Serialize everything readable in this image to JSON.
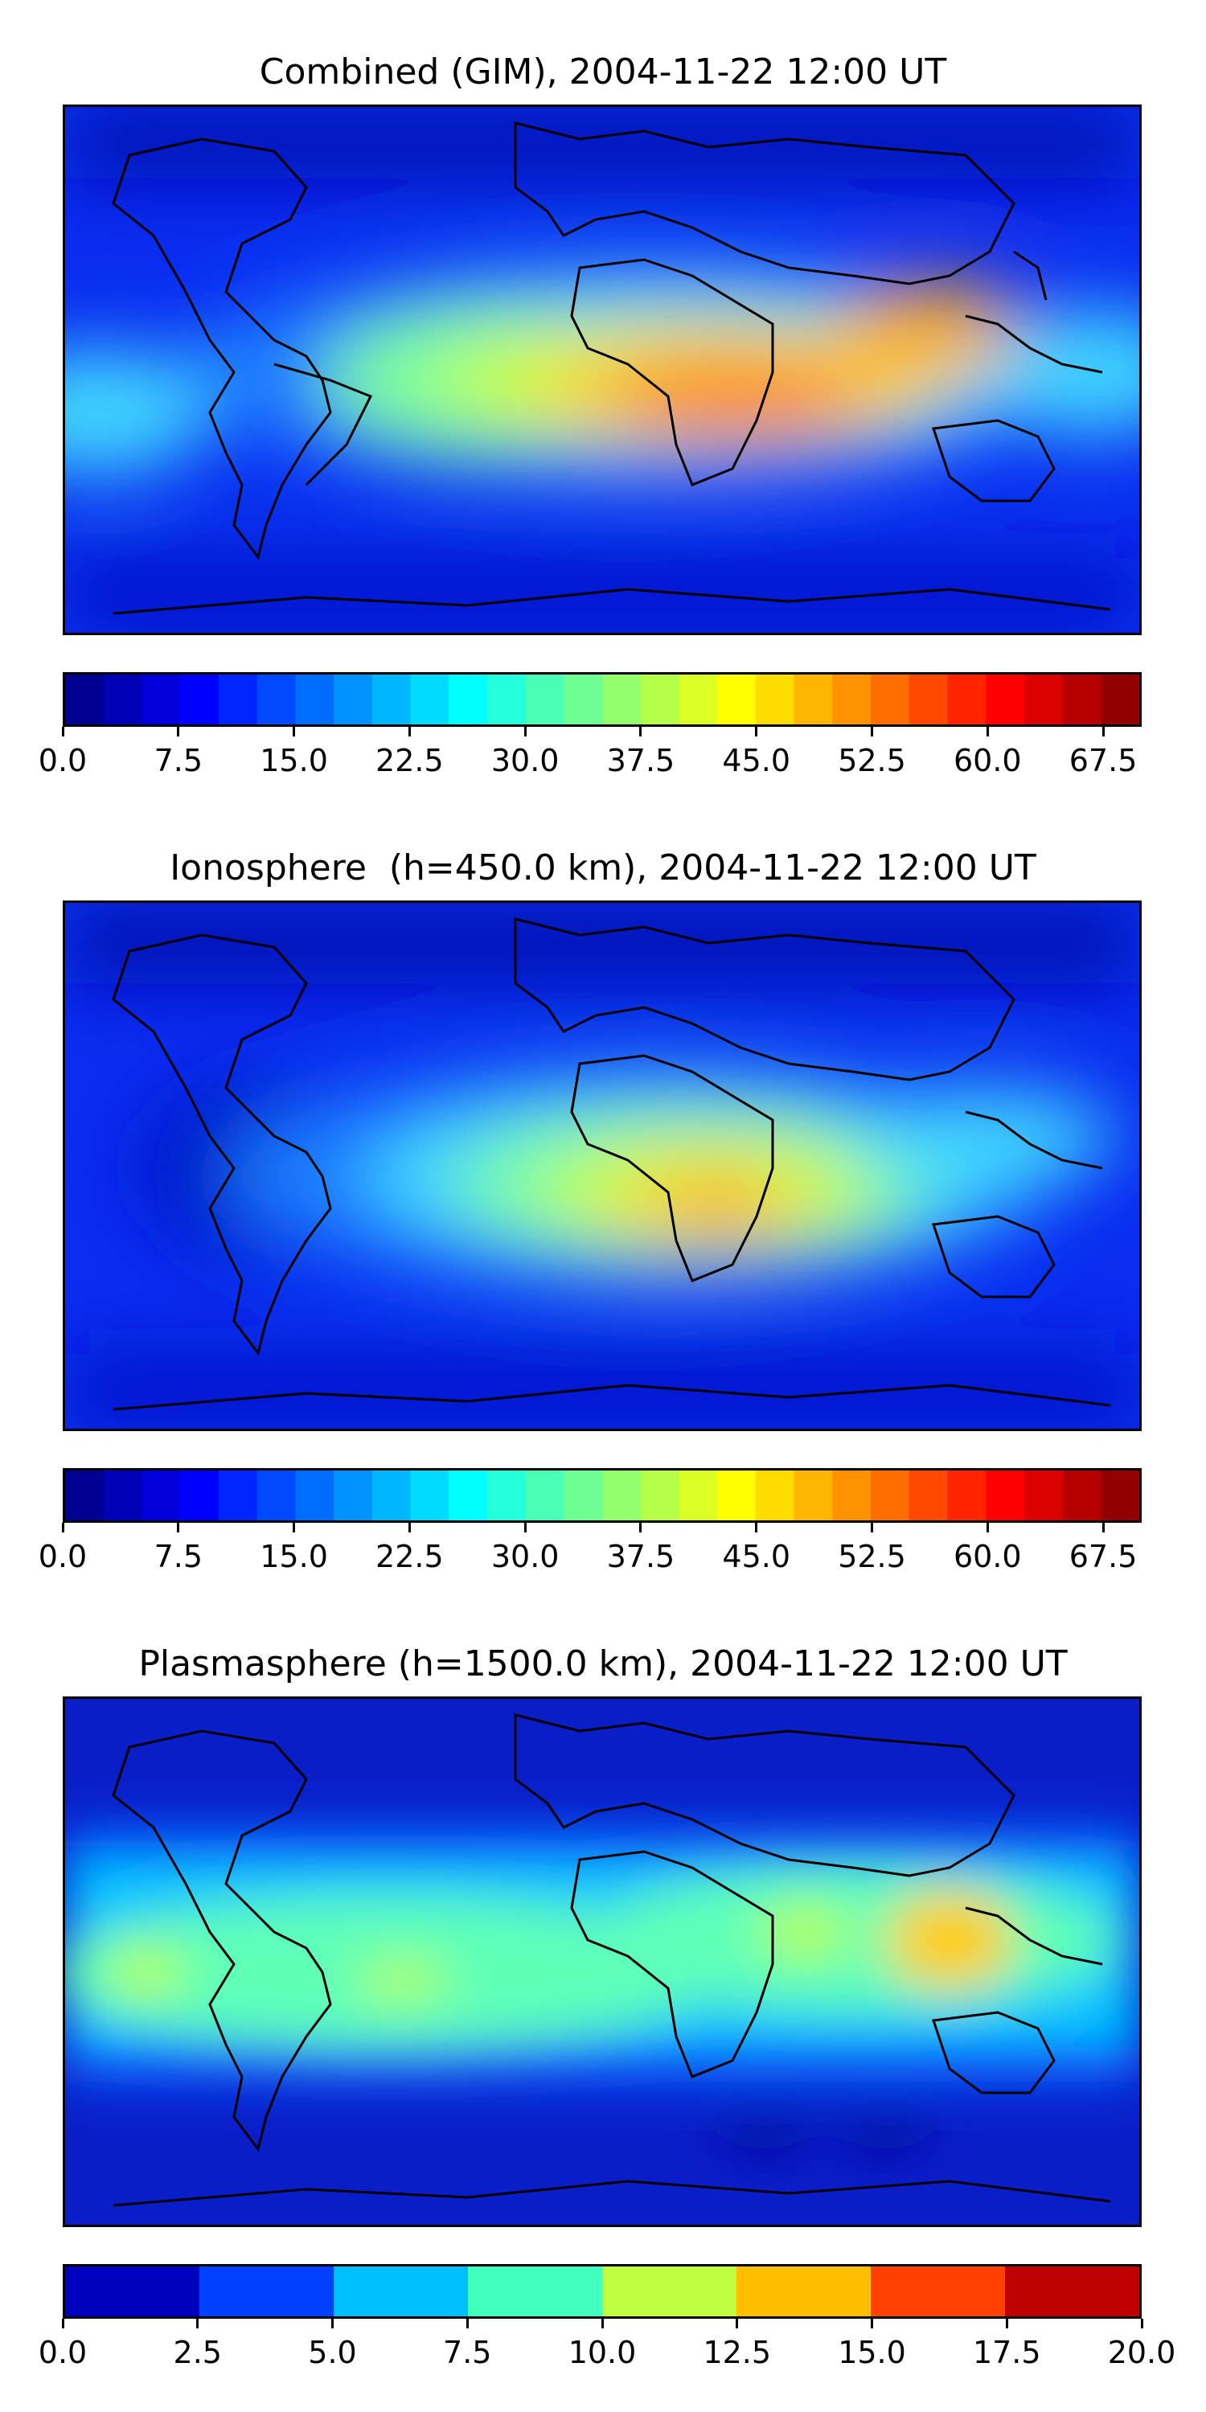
{
  "panels": [
    {
      "title": "Combined (GIM), 2004-11-22 12:00 UT",
      "colorbar": {
        "min": 0.0,
        "max": 70.0,
        "levels": 28,
        "tick_labels": [
          "0.0",
          "7.5",
          "15.0",
          "22.5",
          "30.0",
          "37.5",
          "45.0",
          "52.5",
          "60.0",
          "67.5"
        ]
      }
    },
    {
      "title": "Ionosphere  (h=450.0 km), 2004-11-22 12:00 UT",
      "colorbar": {
        "min": 0.0,
        "max": 70.0,
        "levels": 28,
        "tick_labels": [
          "0.0",
          "7.5",
          "15.0",
          "22.5",
          "30.0",
          "37.5",
          "45.0",
          "52.5",
          "60.0",
          "67.5"
        ]
      }
    },
    {
      "title": "Plasmasphere (h=1500.0 km), 2004-11-22 12:00 UT",
      "colorbar": {
        "min": 0.0,
        "max": 20.0,
        "levels": 8,
        "tick_labels": [
          "0.0",
          "2.5",
          "5.0",
          "7.5",
          "10.0",
          "12.5",
          "15.0",
          "17.5",
          "20.0"
        ]
      }
    }
  ],
  "colormap": "jet"
}
